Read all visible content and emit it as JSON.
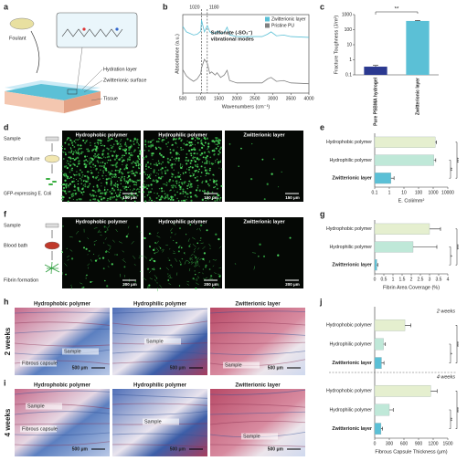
{
  "panel_labels": [
    "a",
    "b",
    "c",
    "d",
    "e",
    "f",
    "g",
    "h",
    "i",
    "j"
  ],
  "schematic_a": {
    "foulant": "Foulant",
    "layers": [
      "Hydration layer",
      "Zwitterionic surface",
      "Tissue"
    ]
  },
  "schematic_d": {
    "steps": [
      "Sample",
      "Bacterial culture",
      "GFP-expressing E. Coli"
    ]
  },
  "schematic_f": {
    "steps": [
      "Sample",
      "Blood bath",
      "Fibrin formation"
    ]
  },
  "micrographs_d": {
    "titles": [
      "Hydrophobic polymer",
      "Hydrophilic polymer",
      "Zwitterionic layer"
    ],
    "scale_bars": [
      "150 μm",
      "150 μm",
      "150 μm"
    ]
  },
  "micrographs_f": {
    "titles": [
      "Hydrophobic polymer",
      "Hydrophilic polymer",
      "Zwitterionic layer"
    ],
    "scale_bars": [
      "200 μm",
      "200 μm",
      "200 μm"
    ]
  },
  "histology_h": {
    "time": "2 weeks",
    "titles": [
      "Hydrophobic polymer",
      "Hydrophilic polymer",
      "Zwitterionic layer"
    ],
    "annotations": [
      "Sample",
      "Fibrous capsule",
      "Sample",
      "Sample"
    ],
    "scale_bars": [
      "500 μm",
      "500 μm",
      "500 μm"
    ]
  },
  "histology_i": {
    "time": "4 weeks",
    "titles": [
      "Hydrophobic polymer",
      "Hydrophilic polymer",
      "Zwitterionic layer"
    ],
    "annotations": [
      "Sample",
      "Fibrous capsule",
      "Sample",
      "Sample"
    ],
    "scale_bars": [
      "500 μm",
      "500 μm",
      "500 μm"
    ]
  },
  "chart_data": [
    {
      "type": "line",
      "xlabel": "Wavenumbers (cm⁻¹)",
      "ylabel": "Absorbance (a.u.)",
      "x": [
        500,
        600,
        700,
        800,
        900,
        1000,
        1020,
        1100,
        1180,
        1250,
        1300,
        1400,
        1450,
        1550,
        1650,
        1730,
        1800,
        2000,
        2300,
        2700,
        2850,
        2950,
        3100,
        3300,
        3500,
        4000
      ],
      "xlim": [
        500,
        4000
      ],
      "xticks": [
        500,
        1000,
        1500,
        2000,
        2500,
        3000,
        3500,
        4000
      ],
      "ylim": [
        0,
        10
      ],
      "reference_lines": [
        1020,
        1180
      ],
      "annotation": [
        "Sulfonate (-SO₃⁻)",
        "vibrational modes"
      ],
      "legend": "upper right",
      "series": [
        {
          "name": "Zwitterionic layer",
          "color": "#5bc0d6",
          "values": [
            8.5,
            7.8,
            7.6,
            7.4,
            7.5,
            7.9,
            9.3,
            7.8,
            8.6,
            7.8,
            7.7,
            7.6,
            7.9,
            7.6,
            7.7,
            8.4,
            7.4,
            7.2,
            7.2,
            7.2,
            7.5,
            7.8,
            7.3,
            7.4,
            7.2,
            7.1
          ]
        },
        {
          "name": "Pristine PU",
          "color": "#808080",
          "values": [
            3.0,
            2.2,
            1.8,
            1.5,
            1.8,
            2.5,
            3.2,
            4.3,
            3.8,
            2.5,
            2.7,
            2.3,
            2.6,
            2.0,
            2.3,
            2.9,
            1.6,
            1.3,
            1.3,
            1.3,
            1.8,
            2.0,
            1.5,
            1.6,
            1.3,
            1.2
          ]
        }
      ]
    },
    {
      "type": "bar",
      "ylabel": "Fracture Toughness (J/m²)",
      "y_scale": "log",
      "categories": [
        "Pure PSBMA hydrogel",
        "Zwitterionic layer"
      ],
      "values": [
        0.35,
        380
      ],
      "errors": [
        0.07,
        30
      ],
      "colors": [
        "#2b3990",
        "#5bc0d6"
      ],
      "ylim": [
        0.1,
        1000
      ],
      "yticks": [
        0.1,
        1,
        10,
        100,
        1000
      ],
      "significance": "**"
    },
    {
      "type": "barh",
      "xlabel": "E. Coli/mm²",
      "x_scale": "log",
      "categories": [
        "Hydrophobic polymer",
        "Hydrophilic polymer",
        "Zwitterionic layer"
      ],
      "values": [
        1400,
        1100,
        1.3
      ],
      "errors": [
        300,
        400,
        0.8
      ],
      "colors": [
        "#e5efcf",
        "#bfe8d8",
        "#5bc0d6"
      ],
      "xlim": [
        0.1,
        10000
      ],
      "xticks": [
        0.1,
        1,
        10,
        100,
        1000,
        10000
      ],
      "significance": [
        "**",
        "***"
      ]
    },
    {
      "type": "barh",
      "xlabel": "Fibrin Area Coverage (%)",
      "categories": [
        "Hydrophobic polymer",
        "Hydrophilic polymer",
        "Zwitterionic layer"
      ],
      "values": [
        3.0,
        2.1,
        0.12
      ],
      "errors": [
        0.6,
        1.3,
        0.05
      ],
      "colors": [
        "#e5efcf",
        "#bfe8d8",
        "#5bc0d6"
      ],
      "xlim": [
        0,
        4
      ],
      "xticks": [
        0,
        0.5,
        1,
        1.5,
        2,
        2.5,
        3,
        3.5,
        4
      ],
      "significance": [
        "*",
        "***"
      ]
    },
    {
      "type": "barh",
      "xlabel": "Fibrous Capsule Thickness (μm)",
      "categories": [
        "Hydrophobic polymer",
        "Hydrophilic polymer",
        "Zwitterionic layer"
      ],
      "colors": [
        "#e5efcf",
        "#bfe8d8",
        "#5bc0d6"
      ],
      "xlim": [
        0,
        1500
      ],
      "xticks": [
        0,
        300,
        600,
        900,
        1200,
        1500
      ],
      "groups": [
        {
          "name": "2 weeks",
          "values": [
            620,
            180,
            140
          ],
          "errors": [
            120,
            40,
            50
          ],
          "significance": [
            "*",
            "***"
          ]
        },
        {
          "name": "4 weeks",
          "values": [
            1150,
            300,
            130
          ],
          "errors": [
            130,
            80,
            30
          ],
          "significance": [
            "**",
            "***"
          ]
        }
      ]
    }
  ]
}
